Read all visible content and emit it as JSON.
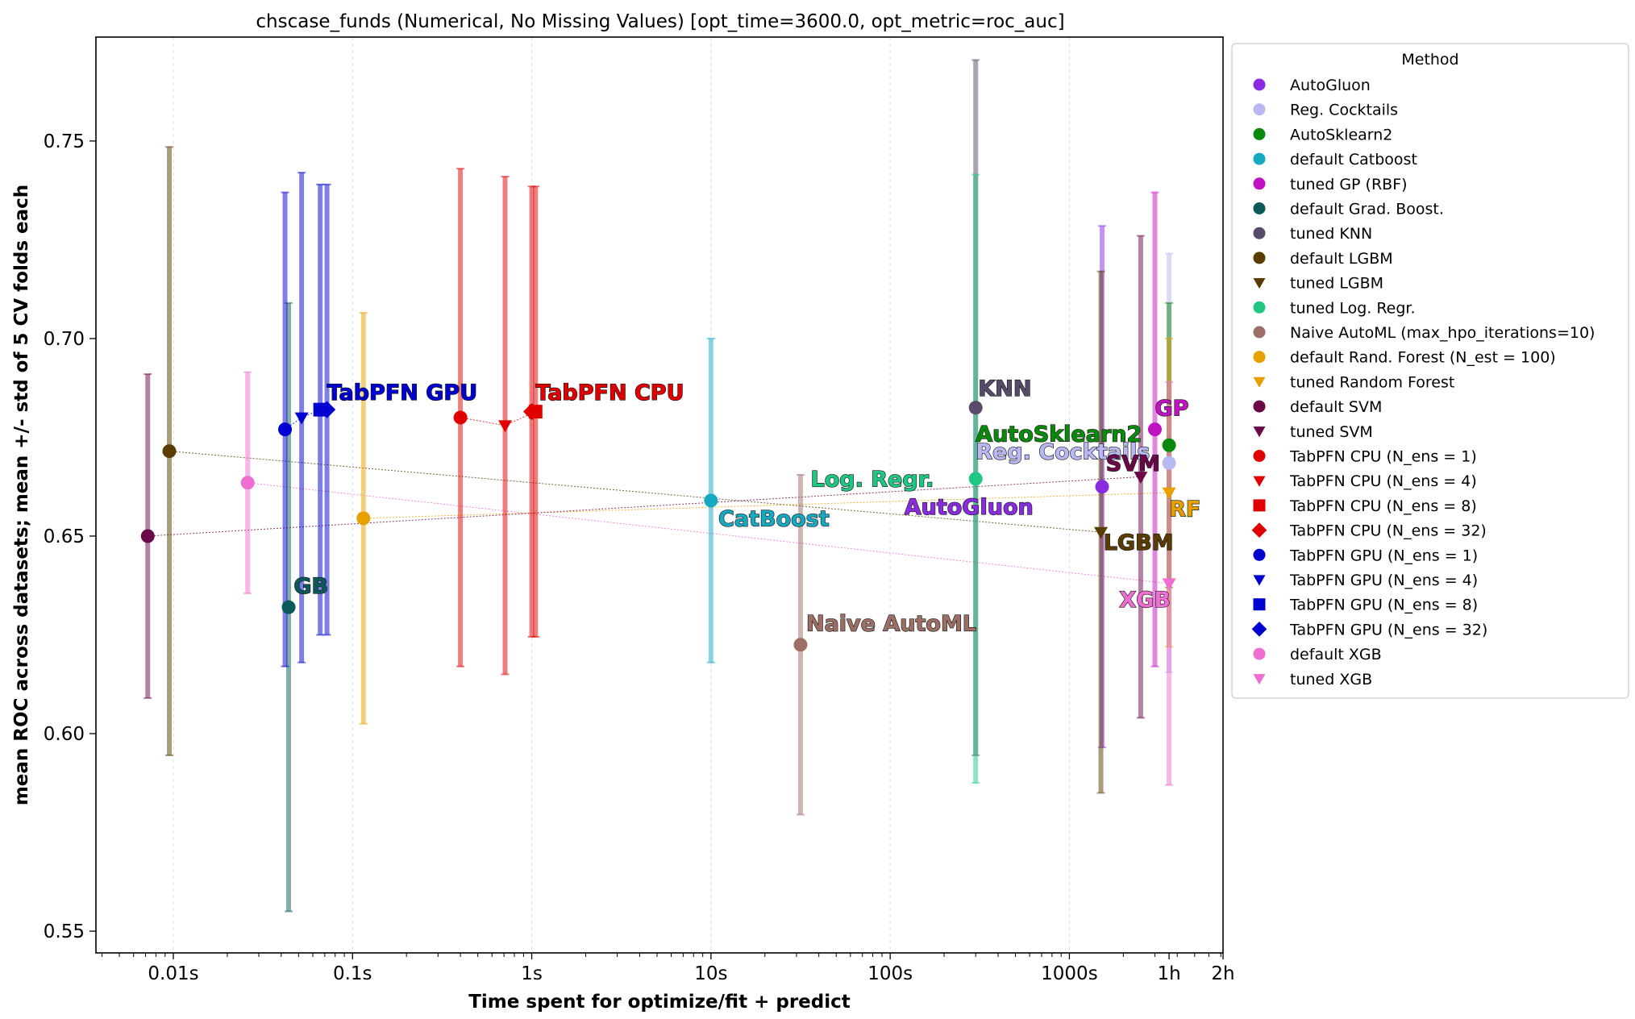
{
  "chart_data": {
    "type": "scatter",
    "title": "chscase_funds (Numerical, No Missing Values) [opt_time=3600.0, opt_metric=roc_auc]",
    "xlabel": "Time spent for optimize/fit + predict",
    "ylabel": "mean ROC across datasets; mean +/- std of 5 CV folds each",
    "xscale": "log",
    "xlim": [
      0.0037,
      7200
    ],
    "ylim": [
      0.5445,
      0.7763
    ],
    "xticks": [
      {
        "value": 0.01,
        "label": "0.01s"
      },
      {
        "value": 0.1,
        "label": "0.1s"
      },
      {
        "value": 1,
        "label": "1s"
      },
      {
        "value": 10,
        "label": "10s"
      },
      {
        "value": 100,
        "label": "100s"
      },
      {
        "value": 1000,
        "label": "1000s"
      },
      {
        "value": 3600,
        "label": "1h"
      },
      {
        "value": 7200,
        "label": "2h"
      }
    ],
    "yticks": [
      {
        "value": 0.55,
        "label": "0.55"
      },
      {
        "value": 0.6,
        "label": "0.60"
      },
      {
        "value": 0.65,
        "label": "0.65"
      },
      {
        "value": 0.7,
        "label": "0.70"
      },
      {
        "value": 0.75,
        "label": "0.75"
      }
    ],
    "grid": "x-major-dashed",
    "legend": {
      "title": "Method",
      "placement": "outside-right-top"
    },
    "series": [
      {
        "name": "AutoGluon",
        "color": "#8a2be2",
        "marker": "circle",
        "x": 1523,
        "y": 0.6625,
        "err": 0.066
      },
      {
        "name": "Reg. Cocktails",
        "color": "#b8b8f5",
        "marker": "circle",
        "x": 3600,
        "y": 0.6685,
        "err": 0.053
      },
      {
        "name": "AutoSklearn2",
        "color": "#0a8a0a",
        "marker": "circle",
        "x": 3600,
        "y": 0.673,
        "err": 0.036
      },
      {
        "name": "default Catboost",
        "color": "#17a8c2",
        "marker": "circle",
        "x": 10,
        "y": 0.659,
        "err": 0.041
      },
      {
        "name": "tuned GP (RBF)",
        "color": "#c012c0",
        "marker": "circle",
        "x": 3000,
        "y": 0.677,
        "err": 0.06
      },
      {
        "name": "default Grad. Boost.",
        "color": "#0a5a5a",
        "marker": "circle",
        "x": 0.044,
        "y": 0.632,
        "err": 0.077
      },
      {
        "name": "tuned KNN",
        "color": "#5a4a6a",
        "marker": "circle",
        "x": 300,
        "y": 0.6825,
        "err": 0.088
      },
      {
        "name": "default LGBM",
        "color": "#5a3c00",
        "marker": "circle",
        "x": 0.0095,
        "y": 0.6715,
        "err": 0.077
      },
      {
        "name": "tuned LGBM",
        "color": "#5a3c00",
        "marker": "triangle-down",
        "x": 1500,
        "y": 0.651,
        "err": 0.066
      },
      {
        "name": "tuned Log. Regr.",
        "color": "#1ec883",
        "marker": "circle",
        "x": 300,
        "y": 0.6645,
        "err": 0.077
      },
      {
        "name": "Naive AutoML (max_hpo_iterations=10)",
        "color": "#9c6e64",
        "marker": "circle",
        "x": 31.6,
        "y": 0.6225,
        "err": 0.043
      },
      {
        "name": "default Rand. Forest (N_est = 100)",
        "color": "#e6a000",
        "marker": "circle",
        "x": 0.115,
        "y": 0.6545,
        "err": 0.052
      },
      {
        "name": "tuned Random Forest",
        "color": "#e6a000",
        "marker": "triangle-down",
        "x": 3600,
        "y": 0.661,
        "err": 0.039
      },
      {
        "name": "default SVM",
        "color": "#6a0848",
        "marker": "circle",
        "x": 0.0072,
        "y": 0.65,
        "err": 0.041
      },
      {
        "name": "tuned SVM",
        "color": "#6a0848",
        "marker": "triangle-down",
        "x": 2500,
        "y": 0.665,
        "err": 0.061
      },
      {
        "name": "TabPFN CPU (N_ens =  1)",
        "color": "#e00000",
        "marker": "circle",
        "x": 0.4,
        "y": 0.68,
        "err": 0.063
      },
      {
        "name": "TabPFN CPU (N_ens =  4)",
        "color": "#e00000",
        "marker": "triangle-down",
        "x": 0.71,
        "y": 0.678,
        "err": 0.063
      },
      {
        "name": "TabPFN CPU (N_ens =  8)",
        "color": "#e00000",
        "marker": "square",
        "x": 1.05,
        "y": 0.6815,
        "err": 0.057
      },
      {
        "name": "TabPFN CPU (N_ens = 32)",
        "color": "#e00000",
        "marker": "diamond",
        "x": 1.0,
        "y": 0.6815,
        "err": 0.057
      },
      {
        "name": "TabPFN GPU (N_ens =  1)",
        "color": "#0000d0",
        "marker": "circle",
        "x": 0.042,
        "y": 0.677,
        "err": 0.06
      },
      {
        "name": "TabPFN GPU (N_ens =  4)",
        "color": "#0000d0",
        "marker": "triangle-down",
        "x": 0.052,
        "y": 0.68,
        "err": 0.062
      },
      {
        "name": "TabPFN GPU (N_ens =  8)",
        "color": "#0000d0",
        "marker": "square",
        "x": 0.066,
        "y": 0.682,
        "err": 0.057
      },
      {
        "name": "TabPFN GPU (N_ens = 32)",
        "color": "#0000d0",
        "marker": "diamond",
        "x": 0.072,
        "y": 0.682,
        "err": 0.057
      },
      {
        "name": "default XGB",
        "color": "#f06ed2",
        "marker": "circle",
        "x": 0.026,
        "y": 0.6635,
        "err": 0.028
      },
      {
        "name": "tuned XGB",
        "color": "#f06ed2",
        "marker": "triangle-down",
        "x": 3600,
        "y": 0.638,
        "err": 0.051
      }
    ],
    "links": [
      {
        "from": 7,
        "to": 8,
        "color": "#5a3c00"
      },
      {
        "from": 11,
        "to": 12,
        "color": "#e6a000"
      },
      {
        "from": 13,
        "to": 14,
        "color": "#6a0848"
      },
      {
        "from": 23,
        "to": 24,
        "color": "#f06ed2"
      },
      {
        "from": 15,
        "to": 16,
        "color": "#e00000"
      },
      {
        "from": 16,
        "to": 17,
        "color": "#e00000"
      },
      {
        "from": 19,
        "to": 20,
        "color": "#0000d0"
      },
      {
        "from": 20,
        "to": 21,
        "color": "#0000d0"
      },
      {
        "from": 21,
        "to": 22,
        "color": "#0000d0"
      }
    ],
    "annotations": [
      {
        "text": "TabPFN GPU",
        "color": "#0000d0",
        "x": 0.072,
        "y": 0.6845
      },
      {
        "text": "TabPFN CPU",
        "color": "#e00000",
        "x": 1.05,
        "y": 0.6845
      },
      {
        "text": "KNN",
        "color": "#5a4a6a",
        "x": 310,
        "y": 0.6855
      },
      {
        "text": "GP",
        "color": "#c012c0",
        "x": 3000,
        "y": 0.6805
      },
      {
        "text": "AutoSklearn2",
        "color": "#0a8a0a",
        "x": 300,
        "y": 0.674
      },
      {
        "text": "Reg. Cocktails",
        "color": "#b8b8f5",
        "x": 300,
        "y": 0.6695
      },
      {
        "text": "SVM",
        "color": "#6a0848",
        "x": 1600,
        "y": 0.6665
      },
      {
        "text": "Log. Regr.",
        "color": "#1ec883",
        "x": 36,
        "y": 0.6625
      },
      {
        "text": "AutoGluon",
        "color": "#8a2be2",
        "x": 120,
        "y": 0.6555
      },
      {
        "text": "RF",
        "color": "#e6a000",
        "x": 3600,
        "y": 0.655
      },
      {
        "text": "CatBoost",
        "color": "#17a8c2",
        "x": 11,
        "y": 0.6525
      },
      {
        "text": "LGBM",
        "color": "#5a3c00",
        "x": 1550,
        "y": 0.6465
      },
      {
        "text": "GB",
        "color": "#0a5a5a",
        "x": 0.047,
        "y": 0.6355
      },
      {
        "text": "XGB",
        "color": "#f06ed2",
        "x": 1900,
        "y": 0.632
      },
      {
        "text": "Naive AutoML",
        "color": "#9c6e64",
        "x": 34,
        "y": 0.626
      }
    ]
  }
}
